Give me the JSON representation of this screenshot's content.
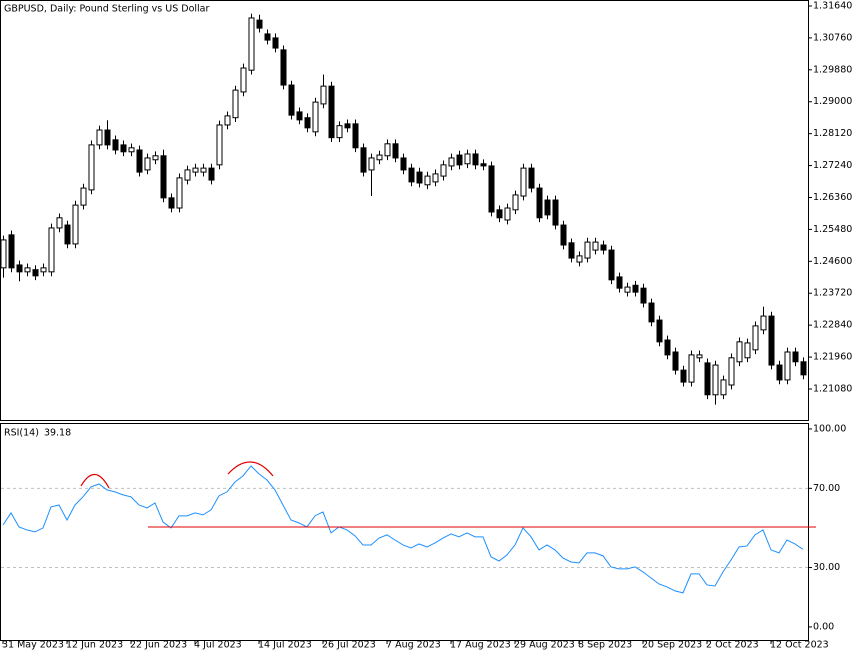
{
  "chart_data": [
    {
      "type": "candlestick",
      "title": "GBPUSD, Daily:  Pound Sterling vs US Dollar",
      "categories": [
        "31 May 2023",
        null,
        null,
        null,
        null,
        null,
        null,
        null,
        "12 Jun 2023",
        null,
        null,
        null,
        null,
        null,
        null,
        null,
        "22 Jun 2023",
        null,
        null,
        null,
        null,
        null,
        null,
        null,
        "4 Jul 2023",
        null,
        null,
        null,
        null,
        null,
        null,
        null,
        "14 Jul 2023",
        null,
        null,
        null,
        null,
        null,
        null,
        null,
        "26 Jul 2023",
        null,
        null,
        null,
        null,
        null,
        null,
        null,
        "7 Aug 2023",
        null,
        null,
        null,
        null,
        null,
        null,
        null,
        "17 Aug 2023",
        null,
        null,
        null,
        null,
        null,
        null,
        null,
        "29 Aug 2023",
        null,
        null,
        null,
        null,
        null,
        null,
        null,
        "8 Sep 2023",
        null,
        null,
        null,
        null,
        null,
        null,
        null,
        "20 Sep 2023",
        null,
        null,
        null,
        null,
        null,
        null,
        null,
        "2 Oct 2023",
        null,
        null,
        null,
        null,
        null,
        null,
        null,
        "12 Oct 2023",
        null,
        null,
        null,
        null
      ],
      "open": [
        1.2442,
        1.2533,
        1.245,
        1.2431,
        1.2437,
        1.2431,
        1.2431,
        1.2552,
        1.256,
        1.2508,
        1.2615,
        1.2657,
        1.2781,
        1.2822,
        1.2795,
        1.2781,
        1.2762,
        1.2767,
        1.2712,
        1.274,
        1.2751,
        1.2635,
        1.2607,
        1.2684,
        1.2706,
        1.2706,
        1.2717,
        1.2726,
        1.2836,
        1.2856,
        1.2927,
        1.2987,
        1.3125,
        1.3087,
        1.3076,
        1.3043,
        1.2946,
        1.2872,
        1.2856,
        1.2817,
        1.2894,
        1.2943,
        1.2801,
        1.2839,
        1.2839,
        1.2773,
        1.2712,
        1.274,
        1.2751,
        1.2784,
        1.2745,
        1.2717,
        1.2706,
        1.2671,
        1.2679,
        1.2695,
        1.2723,
        1.2753,
        1.2729,
        1.2756,
        1.2729,
        1.2723,
        1.2602,
        1.2574,
        1.2602,
        1.264,
        1.2717,
        1.2662,
        1.2629,
        1.2629,
        1.256,
        1.2511,
        1.2458,
        1.2469,
        1.2491,
        1.2505,
        1.2491,
        1.2417,
        1.2375,
        1.2394,
        1.2386,
        1.2345,
        1.2298,
        1.2243,
        1.221,
        1.216,
        1.2127,
        1.2194,
        1.218,
        1.2092,
        1.2092,
        1.2119,
        1.2183,
        1.2194,
        1.2216,
        1.2271,
        1.2309,
        1.2174,
        1.2133,
        1.221,
        1.2183
      ],
      "high": [
        1.2531,
        1.2545,
        1.2462,
        1.2454,
        1.2449,
        1.2454,
        1.2564,
        1.2592,
        1.2572,
        1.2627,
        1.2674,
        1.2793,
        1.2834,
        1.2849,
        1.2807,
        1.2793,
        1.2785,
        1.2779,
        1.2757,
        1.2763,
        1.2768,
        1.2647,
        1.2702,
        1.2724,
        1.2729,
        1.2729,
        1.2729,
        1.2848,
        1.2873,
        1.2944,
        1.3005,
        1.3143,
        1.314,
        1.3099,
        1.3088,
        1.3055,
        1.2958,
        1.2884,
        1.2868,
        1.2911,
        1.2975,
        1.2955,
        1.2846,
        1.2851,
        1.2851,
        1.2785,
        1.2757,
        1.2765,
        1.2796,
        1.2796,
        1.2757,
        1.2729,
        1.2718,
        1.2707,
        1.2713,
        1.2738,
        1.2757,
        1.2765,
        1.2768,
        1.2768,
        1.2741,
        1.2735,
        1.2614,
        1.2619,
        1.2655,
        1.2729,
        1.2729,
        1.2674,
        1.2641,
        1.2641,
        1.2572,
        1.2523,
        1.2487,
        1.2525,
        1.2525,
        1.2517,
        1.2503,
        1.2429,
        1.2401,
        1.2406,
        1.2398,
        1.2357,
        1.231,
        1.2255,
        1.2222,
        1.2172,
        1.2214,
        1.2214,
        1.2192,
        1.2186,
        1.2145,
        1.2206,
        1.225,
        1.2247,
        1.2294,
        1.2335,
        1.2321,
        1.2186,
        1.2222,
        1.2222,
        1.2195
      ],
      "low": [
        1.2415,
        1.243,
        1.2405,
        1.2419,
        1.2408,
        1.2419,
        1.2419,
        1.254,
        1.2496,
        1.2496,
        1.2603,
        1.2645,
        1.2769,
        1.2769,
        1.2755,
        1.275,
        1.275,
        1.2694,
        1.27,
        1.2728,
        1.2623,
        1.2595,
        1.2595,
        1.2672,
        1.2694,
        1.2694,
        1.2672,
        1.2714,
        1.2824,
        1.2844,
        1.2915,
        1.2975,
        1.3091,
        1.3058,
        1.3036,
        1.2934,
        1.2851,
        1.2838,
        1.2816,
        1.2805,
        1.2882,
        1.2789,
        1.2789,
        1.2816,
        1.2761,
        1.2694,
        1.264,
        1.2728,
        1.2739,
        1.2733,
        1.27,
        1.2667,
        1.2664,
        1.2659,
        1.2667,
        1.2683,
        1.2711,
        1.2714,
        1.2717,
        1.2714,
        1.2711,
        1.2584,
        1.2568,
        1.2562,
        1.259,
        1.2628,
        1.265,
        1.2568,
        1.2576,
        1.2548,
        1.2493,
        1.2457,
        1.2446,
        1.2457,
        1.2479,
        1.2479,
        1.2397,
        1.2374,
        1.2363,
        1.2363,
        1.2333,
        1.2281,
        1.2226,
        1.219,
        1.2148,
        1.2115,
        1.2115,
        1.2182,
        1.208,
        1.2065,
        1.208,
        1.2107,
        1.2171,
        1.2182,
        1.2204,
        1.2259,
        1.2162,
        1.2121,
        1.2121,
        1.2171,
        1.2135
      ],
      "close": [
        1.2519,
        1.2442,
        1.2431,
        1.2442,
        1.242,
        1.2442,
        1.2552,
        1.258,
        1.2508,
        1.2615,
        1.2662,
        1.2781,
        1.2822,
        1.2781,
        1.2767,
        1.2762,
        1.2773,
        1.2706,
        1.2745,
        1.2751,
        1.2635,
        1.2607,
        1.269,
        1.2712,
        1.2717,
        1.2717,
        1.2684,
        1.2836,
        1.2861,
        1.2932,
        1.2993,
        1.3131,
        1.3103,
        1.307,
        1.3048,
        1.2946,
        1.2863,
        1.285,
        1.2828,
        1.2899,
        1.2943,
        1.2801,
        1.2834,
        1.2828,
        1.2773,
        1.2706,
        1.2745,
        1.2753,
        1.2784,
        1.2745,
        1.2712,
        1.2679,
        1.2676,
        1.2695,
        1.2701,
        1.2726,
        1.2745,
        1.2726,
        1.2756,
        1.2726,
        1.2723,
        1.2596,
        1.258,
        1.2607,
        1.2643,
        1.2717,
        1.2662,
        1.258,
        1.2588,
        1.256,
        1.2505,
        1.2469,
        1.2475,
        1.2513,
        1.2513,
        1.2491,
        1.2409,
        1.2386,
        1.2389,
        1.2375,
        1.2345,
        1.2293,
        1.2238,
        1.2202,
        1.216,
        1.2127,
        1.2202,
        1.2202,
        1.2092,
        1.2174,
        1.2133,
        1.2194,
        1.2238,
        1.2235,
        1.2282,
        1.2309,
        1.2174,
        1.2133,
        1.221,
        1.2183,
        1.2147
      ],
      "up_color": "#ffffff",
      "down_color": "#000000",
      "ylim": [
        1.20225,
        1.31805
      ],
      "yticks": [
        {
          "value": 1.3164,
          "label": "1.31640"
        },
        {
          "value": 1.3076,
          "label": "1.30760"
        },
        {
          "value": 1.2988,
          "label": "1.29880"
        },
        {
          "value": 1.29,
          "label": "1.29000"
        },
        {
          "value": 1.2812,
          "label": "1.28120"
        },
        {
          "value": 1.2724,
          "label": "1.27240"
        },
        {
          "value": 1.2636,
          "label": "1.26360"
        },
        {
          "value": 1.2548,
          "label": "1.25480"
        },
        {
          "value": 1.246,
          "label": "1.24600"
        },
        {
          "value": 1.2372,
          "label": "1.23720"
        },
        {
          "value": 1.2284,
          "label": "1.22840"
        },
        {
          "value": 1.2196,
          "label": "1.21960"
        },
        {
          "value": 1.2108,
          "label": "1.21080"
        }
      ]
    },
    {
      "type": "line",
      "series": [
        {
          "name": "RSI(14)",
          "color": "#1e90ff",
          "values": [
            51.5,
            57.6,
            50.5,
            49,
            48,
            50,
            60.6,
            61.6,
            54,
            61.6,
            65.7,
            70.7,
            72.2,
            69.2,
            68.2,
            66.7,
            65.7,
            61.6,
            60.1,
            62.6,
            53,
            50,
            56.1,
            56.1,
            57.6,
            56.6,
            59.1,
            66.2,
            68.2,
            73.2,
            76.3,
            81.3,
            77.3,
            74.2,
            69.2,
            61.6,
            54,
            52.5,
            50.5,
            56.1,
            58.1,
            47.5,
            50.5,
            49,
            46,
            41.4,
            41.4,
            44.9,
            46.5,
            43.9,
            41.4,
            39.9,
            41.9,
            40.4,
            42.4,
            44.9,
            47,
            45.5,
            47.5,
            45.5,
            45.5,
            35.4,
            33.3,
            36.4,
            41.4,
            50,
            45.5,
            38.9,
            41.4,
            38.9,
            34.8,
            32.8,
            32.3,
            37.4,
            37.4,
            35.9,
            30.3,
            29.3,
            29.3,
            30.3,
            27.8,
            24.7,
            21.7,
            20.2,
            18.2,
            17.2,
            26.8,
            26.8,
            21.2,
            20.7,
            27.8,
            33.8,
            40.4,
            40.9,
            46.5,
            49,
            38.9,
            37.4,
            43.9,
            41.9,
            39.18
          ]
        }
      ],
      "ylim": [
        -6.6,
        103
      ],
      "yticks": [
        {
          "value": 100,
          "label": "100.00"
        },
        {
          "value": 70,
          "label": "70.00"
        },
        {
          "value": 30,
          "label": "30.00"
        },
        {
          "value": 0,
          "label": "0.00"
        }
      ],
      "levels": [
        70,
        30
      ],
      "level_color": "#c0c0c0"
    }
  ]
}
